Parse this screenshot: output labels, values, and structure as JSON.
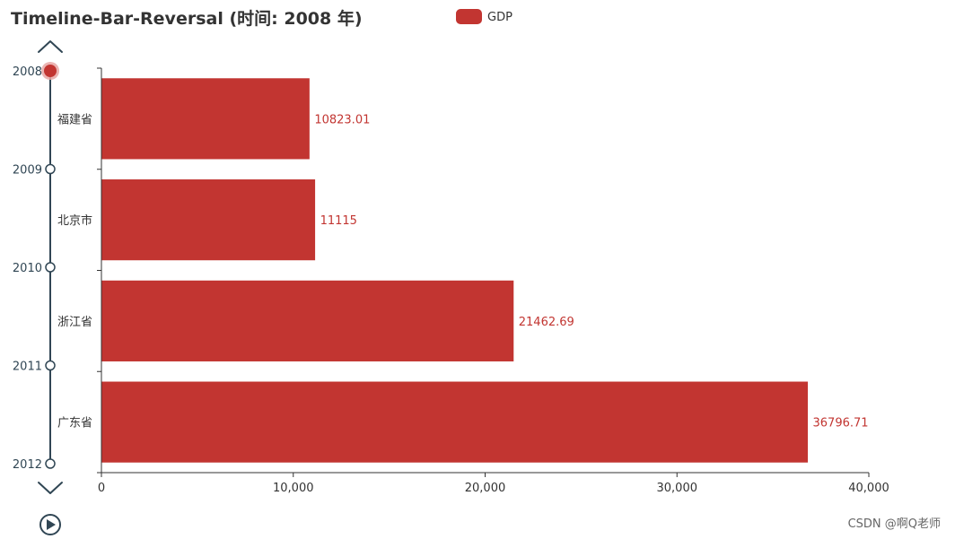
{
  "chart_data": {
    "type": "bar",
    "orientation": "horizontal",
    "title": "Timeline-Bar-Reversal (时间: 2008 年)",
    "categories": [
      "福建省",
      "北京市",
      "浙江省",
      "广东省"
    ],
    "series": [
      {
        "name": "GDP",
        "values": [
          10823.01,
          11115,
          21462.69,
          36796.71
        ],
        "labels": [
          "10823.01",
          "11115",
          "21462.69",
          "36796.71"
        ]
      }
    ],
    "xlim": [
      0,
      40000
    ],
    "x_ticks": [
      0,
      10000,
      20000,
      30000,
      40000
    ],
    "x_tick_labels": [
      "0",
      "10,000",
      "20,000",
      "30,000",
      "40,000"
    ],
    "legend": "top-center",
    "grid": false
  },
  "timeline": {
    "labels": [
      "2008",
      "2009",
      "2010",
      "2011",
      "2012"
    ],
    "current": "2008",
    "controls": {
      "prev": "chevron-up-icon",
      "next": "chevron-down-icon",
      "play": "play-icon"
    }
  },
  "watermark": "CSDN @啊Q老师",
  "colors": {
    "bar": "#c23531",
    "bar_label": "#c23531",
    "timeline": "#304654",
    "axis": "#333333",
    "title": "#333333"
  }
}
